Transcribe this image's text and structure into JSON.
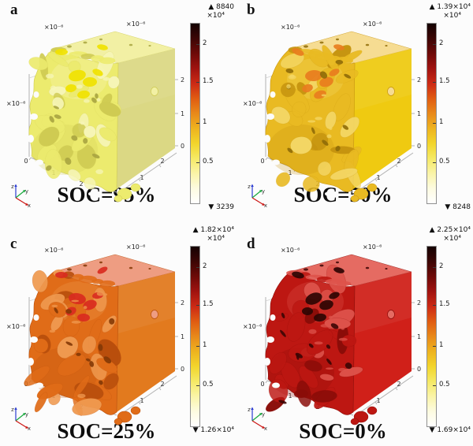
{
  "chart_data": [
    {
      "type": "heatmap",
      "panel": "a",
      "title": "SOC=95%",
      "surface_max": 8840,
      "surface_min": 3239,
      "colorbar_scale": 10000,
      "colorbar_ticks": [
        0.5,
        1,
        1.5,
        2
      ],
      "colorbar_range": [
        0,
        22500
      ],
      "axis_unit_scale": "1e-6",
      "axis_ticks": [
        0,
        1,
        2
      ]
    },
    {
      "type": "heatmap",
      "panel": "b",
      "title": "SOC=50%",
      "surface_max": 13900,
      "surface_min": 8248,
      "colorbar_scale": 10000,
      "colorbar_ticks": [
        0.5,
        1,
        1.5,
        2
      ],
      "colorbar_range": [
        0,
        22500
      ],
      "axis_unit_scale": "1e-6",
      "axis_ticks": [
        0,
        1,
        2
      ]
    },
    {
      "type": "heatmap",
      "panel": "c",
      "title": "SOC=25%",
      "surface_max": 18200,
      "surface_min": 12600,
      "colorbar_scale": 10000,
      "colorbar_ticks": [
        0.5,
        1,
        1.5,
        2
      ],
      "colorbar_range": [
        0,
        22500
      ],
      "axis_unit_scale": "1e-6",
      "axis_ticks": [
        0,
        1,
        2
      ]
    },
    {
      "type": "heatmap",
      "panel": "d",
      "title": "SOC=0%",
      "surface_max": 22500,
      "surface_min": 16900,
      "colorbar_scale": 10000,
      "colorbar_ticks": [
        0.5,
        1,
        1.5,
        2
      ],
      "colorbar_range": [
        0,
        22500
      ],
      "axis_unit_scale": "1e-6",
      "axis_ticks": [
        0,
        1,
        2
      ]
    }
  ],
  "figure": {
    "background": "#fcfcfc"
  },
  "triad": {
    "x_label": "x",
    "y_label": "y",
    "z_label": "z",
    "x_color": "#cc1512",
    "y_color": "#16a83c",
    "z_color": "#2a3bd0",
    "label_color": "#333333"
  },
  "colorbar_gradient": [
    "#ffffff",
    "#fdfbe0",
    "#faf4a8",
    "#f5e965",
    "#f2d52c",
    "#eeb31f",
    "#e8891a",
    "#e05c12",
    "#cc2a15",
    "#a01310",
    "#6e0a08",
    "#3c0605",
    "#140202"
  ],
  "panels": [
    {
      "letter": "a",
      "soc_label": "SOC=95%",
      "colorbar": {
        "max_label": "▲ 8840",
        "scale_label": "×10⁴",
        "ticks": [
          "2",
          "1.5",
          "1",
          "0.5"
        ],
        "min_label": "▼ 3239"
      },
      "axes": {
        "unit_top_left": "×10⁻⁶",
        "unit_top_right": "×10⁻⁶",
        "unit_left": "×10⁻⁶",
        "x_ticks": [
          "0",
          "1",
          "2"
        ],
        "y_ticks": [
          "0",
          "1",
          "2"
        ],
        "z_ticks": [
          "2",
          "1",
          "0"
        ]
      },
      "palette": {
        "top": "#f2f0a4",
        "right": "#dbd884",
        "base": "#eceb6e",
        "hi": "#f7f6b8",
        "lo": "#cfcb52",
        "accent": "#f0e200",
        "hole": "#a8a440"
      }
    },
    {
      "letter": "b",
      "soc_label": "SOC=50%",
      "colorbar": {
        "max_label": "▲ 1.39×10⁴",
        "scale_label": "×10⁴",
        "ticks": [
          "2",
          "1.5",
          "1",
          "0.5"
        ],
        "min_label": "▼ 8248"
      },
      "axes": {
        "unit_top_left": "×10⁻⁶",
        "unit_top_right": "×10⁻⁶",
        "unit_left": "×10⁻⁶",
        "x_ticks": [
          "0",
          "1",
          "2"
        ],
        "y_ticks": [
          "0",
          "1",
          "2"
        ],
        "z_ticks": [
          "2",
          "1",
          "0"
        ]
      },
      "palette": {
        "top": "#f6dc92",
        "right": "#efca11",
        "base": "#e9ba22",
        "hi": "#f4d765",
        "lo": "#c6940f",
        "accent": "#e87d1e",
        "hole": "#8f6c08"
      }
    },
    {
      "letter": "c",
      "soc_label": "SOC=25%",
      "colorbar": {
        "max_label": "▲ 1.82×10⁴",
        "scale_label": "×10⁴",
        "ticks": [
          "2",
          "1.5",
          "1",
          "0.5"
        ],
        "min_label": "▼ 1.26×10⁴"
      },
      "axes": {
        "unit_top_left": "×10⁻⁶",
        "unit_top_right": "×10⁻⁶",
        "unit_left": "×10⁻⁶",
        "x_ticks": [
          "0",
          "1",
          "2"
        ],
        "y_ticks": [
          "0",
          "1",
          "2"
        ],
        "z_ticks": [
          "2",
          "1",
          "0"
        ]
      },
      "palette": {
        "top": "#ee9d82",
        "right": "#e27a1e",
        "base": "#e06c18",
        "hi": "#f09a50",
        "lo": "#b84e0c",
        "accent": "#d92b20",
        "hole": "#833806"
      }
    },
    {
      "letter": "d",
      "soc_label": "SOC=0%",
      "colorbar": {
        "max_label": "▲ 2.25×10⁴",
        "scale_label": "×10⁴",
        "ticks": [
          "2",
          "1.5",
          "1",
          "0.5"
        ],
        "min_label": "▼ 1.69×10⁴"
      },
      "axes": {
        "unit_top_left": "×10⁻⁶",
        "unit_top_right": "×10⁻⁶",
        "unit_left": "×10⁻⁶",
        "x_ticks": [
          "0",
          "1",
          "2"
        ],
        "y_ticks": [
          "0",
          "1",
          "2"
        ],
        "z_ticks": [
          "2",
          "1",
          "0"
        ]
      },
      "palette": {
        "top": "#e56b62",
        "right": "#d02019",
        "base": "#bd1712",
        "hi": "#de534b",
        "lo": "#8a0c08",
        "accent": "#2e0503",
        "hole": "#3c0504"
      }
    }
  ]
}
